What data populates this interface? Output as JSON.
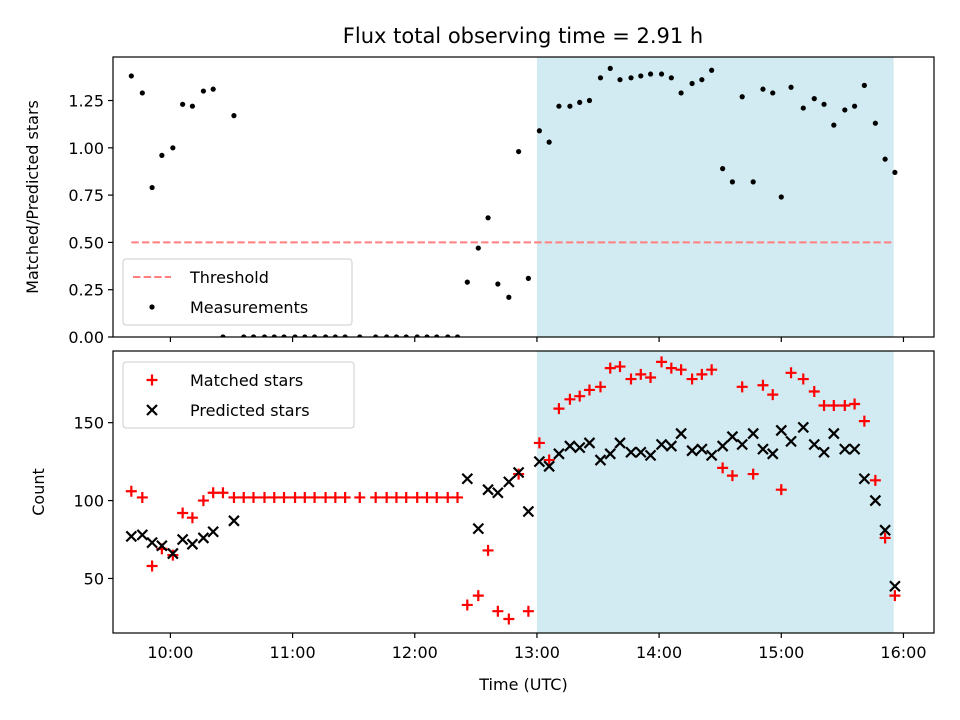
{
  "title": "Flux total observing time = 2.91 h",
  "colors": {
    "threshold": "#ff7f7f",
    "measurement": "#000000",
    "matched": "#ff0000",
    "predicted": "#000000",
    "observing_window": "#add8e6"
  },
  "chart_data": [
    {
      "type": "scatter",
      "ylabel": "Matched/Predicted stars",
      "ylim": [
        0,
        1.48
      ],
      "xlim": [
        9.53,
        16.25
      ],
      "yticks": [
        {
          "value": 0.0,
          "label": "0.00"
        },
        {
          "value": 0.25,
          "label": "0.25"
        },
        {
          "value": 0.5,
          "label": "0.50"
        },
        {
          "value": 0.75,
          "label": "0.75"
        },
        {
          "value": 1.0,
          "label": "1.00"
        },
        {
          "value": 1.25,
          "label": "1.25"
        }
      ],
      "shaded_span": [
        13.0,
        15.92
      ],
      "threshold": {
        "name": "Threshold",
        "value": 0.5,
        "x": [
          9.68,
          15.92
        ],
        "style": "dashed"
      },
      "legend": {
        "placement": "lower-left",
        "entries": [
          "Threshold",
          "Measurements"
        ]
      },
      "series": [
        {
          "name": "Measurements",
          "marker": "dot",
          "points": [
            [
              9.68,
              1.38
            ],
            [
              9.77,
              1.29
            ],
            [
              9.85,
              0.79
            ],
            [
              9.93,
              0.96
            ],
            [
              10.02,
              1.0
            ],
            [
              10.1,
              1.23
            ],
            [
              10.18,
              1.22
            ],
            [
              10.27,
              1.3
            ],
            [
              10.35,
              1.31
            ],
            [
              10.52,
              1.17
            ],
            [
              10.43,
              0.0
            ],
            [
              10.6,
              0.0
            ],
            [
              10.68,
              0.0
            ],
            [
              10.77,
              0.0
            ],
            [
              10.85,
              0.0
            ],
            [
              10.93,
              0.0
            ],
            [
              11.02,
              0.0
            ],
            [
              11.1,
              0.0
            ],
            [
              11.18,
              0.0
            ],
            [
              11.27,
              0.0
            ],
            [
              11.35,
              0.0
            ],
            [
              11.43,
              0.0
            ],
            [
              11.55,
              0.0
            ],
            [
              11.68,
              0.0
            ],
            [
              11.77,
              0.0
            ],
            [
              11.85,
              0.0
            ],
            [
              11.93,
              0.0
            ],
            [
              12.02,
              0.0
            ],
            [
              12.1,
              0.0
            ],
            [
              12.18,
              0.0
            ],
            [
              12.27,
              0.0
            ],
            [
              12.35,
              0.0
            ],
            [
              12.43,
              0.29
            ],
            [
              12.52,
              0.47
            ],
            [
              12.6,
              0.63
            ],
            [
              12.68,
              0.28
            ],
            [
              12.77,
              0.21
            ],
            [
              12.85,
              0.98
            ],
            [
              12.93,
              0.31
            ],
            [
              13.02,
              1.09
            ],
            [
              13.1,
              1.03
            ],
            [
              13.18,
              1.22
            ],
            [
              13.27,
              1.22
            ],
            [
              13.35,
              1.24
            ],
            [
              13.43,
              1.25
            ],
            [
              13.52,
              1.37
            ],
            [
              13.6,
              1.42
            ],
            [
              13.68,
              1.36
            ],
            [
              13.77,
              1.37
            ],
            [
              13.85,
              1.38
            ],
            [
              13.93,
              1.39
            ],
            [
              14.02,
              1.39
            ],
            [
              14.1,
              1.37
            ],
            [
              14.18,
              1.29
            ],
            [
              14.27,
              1.34
            ],
            [
              14.35,
              1.36
            ],
            [
              14.43,
              1.41
            ],
            [
              14.52,
              0.89
            ],
            [
              14.6,
              0.82
            ],
            [
              14.68,
              1.27
            ],
            [
              14.77,
              0.82
            ],
            [
              14.85,
              1.31
            ],
            [
              14.93,
              1.29
            ],
            [
              15.0,
              0.74
            ],
            [
              15.08,
              1.32
            ],
            [
              15.18,
              1.21
            ],
            [
              15.27,
              1.26
            ],
            [
              15.35,
              1.23
            ],
            [
              15.43,
              1.12
            ],
            [
              15.52,
              1.2
            ],
            [
              15.6,
              1.22
            ],
            [
              15.68,
              1.33
            ],
            [
              15.77,
              1.13
            ],
            [
              15.85,
              0.94
            ],
            [
              15.93,
              0.87
            ]
          ]
        }
      ]
    },
    {
      "type": "scatter",
      "ylabel": "Count",
      "xlabel": "Time (UTC)",
      "ylim": [
        15,
        196
      ],
      "xlim": [
        9.53,
        16.25
      ],
      "yticks": [
        {
          "value": 50,
          "label": "50"
        },
        {
          "value": 100,
          "label": "100"
        },
        {
          "value": 150,
          "label": "150"
        }
      ],
      "xticks": [
        {
          "value": 10,
          "label": "10:00"
        },
        {
          "value": 11,
          "label": "11:00"
        },
        {
          "value": 12,
          "label": "12:00"
        },
        {
          "value": 13,
          "label": "13:00"
        },
        {
          "value": 14,
          "label": "14:00"
        },
        {
          "value": 15,
          "label": "15:00"
        },
        {
          "value": 16,
          "label": "16:00"
        }
      ],
      "shaded_span": [
        13.0,
        15.92
      ],
      "legend": {
        "placement": "upper-left",
        "entries": [
          "Matched stars",
          "Predicted stars"
        ]
      },
      "series": [
        {
          "name": "Matched stars",
          "marker": "plus",
          "points": [
            [
              9.68,
              106
            ],
            [
              9.77,
              102
            ],
            [
              9.85,
              58
            ],
            [
              9.93,
              69
            ],
            [
              10.02,
              65
            ],
            [
              10.1,
              92
            ],
            [
              10.18,
              89
            ],
            [
              10.27,
              100
            ],
            [
              10.35,
              105
            ],
            [
              10.43,
              105
            ],
            [
              10.52,
              102
            ],
            [
              10.6,
              102
            ],
            [
              10.68,
              102
            ],
            [
              10.77,
              102
            ],
            [
              10.85,
              102
            ],
            [
              10.93,
              102
            ],
            [
              11.02,
              102
            ],
            [
              11.1,
              102
            ],
            [
              11.18,
              102
            ],
            [
              11.27,
              102
            ],
            [
              11.35,
              102
            ],
            [
              11.43,
              102
            ],
            [
              11.55,
              102
            ],
            [
              11.68,
              102
            ],
            [
              11.77,
              102
            ],
            [
              11.85,
              102
            ],
            [
              11.93,
              102
            ],
            [
              12.02,
              102
            ],
            [
              12.1,
              102
            ],
            [
              12.18,
              102
            ],
            [
              12.27,
              102
            ],
            [
              12.35,
              102
            ],
            [
              12.43,
              33
            ],
            [
              12.52,
              39
            ],
            [
              12.6,
              68
            ],
            [
              12.68,
              29
            ],
            [
              12.77,
              24
            ],
            [
              12.85,
              117
            ],
            [
              12.93,
              29
            ],
            [
              13.02,
              137
            ],
            [
              13.1,
              126
            ],
            [
              13.18,
              159
            ],
            [
              13.27,
              165
            ],
            [
              13.35,
              167
            ],
            [
              13.43,
              171
            ],
            [
              13.52,
              173
            ],
            [
              13.6,
              185
            ],
            [
              13.68,
              186
            ],
            [
              13.77,
              178
            ],
            [
              13.85,
              181
            ],
            [
              13.93,
              179
            ],
            [
              14.02,
              189
            ],
            [
              14.1,
              185
            ],
            [
              14.18,
              184
            ],
            [
              14.27,
              178
            ],
            [
              14.35,
              181
            ],
            [
              14.43,
              184
            ],
            [
              14.52,
              121
            ],
            [
              14.6,
              116
            ],
            [
              14.68,
              173
            ],
            [
              14.77,
              117
            ],
            [
              14.85,
              174
            ],
            [
              14.93,
              168
            ],
            [
              15.0,
              107
            ],
            [
              15.08,
              182
            ],
            [
              15.18,
              178
            ],
            [
              15.27,
              170
            ],
            [
              15.35,
              161
            ],
            [
              15.43,
              161
            ],
            [
              15.52,
              161
            ],
            [
              15.6,
              162
            ],
            [
              15.68,
              151
            ],
            [
              15.77,
              113
            ],
            [
              15.85,
              76
            ],
            [
              15.93,
              39
            ]
          ]
        },
        {
          "name": "Predicted stars",
          "marker": "x",
          "points": [
            [
              9.68,
              77
            ],
            [
              9.77,
              78
            ],
            [
              9.85,
              73
            ],
            [
              9.93,
              71
            ],
            [
              10.02,
              66
            ],
            [
              10.1,
              75
            ],
            [
              10.18,
              72
            ],
            [
              10.27,
              76
            ],
            [
              10.35,
              80
            ],
            [
              10.52,
              87
            ],
            [
              12.43,
              114
            ],
            [
              12.52,
              82
            ],
            [
              12.6,
              107
            ],
            [
              12.68,
              105
            ],
            [
              12.77,
              112
            ],
            [
              12.85,
              118
            ],
            [
              12.93,
              93
            ],
            [
              13.02,
              125
            ],
            [
              13.1,
              122
            ],
            [
              13.18,
              130
            ],
            [
              13.27,
              135
            ],
            [
              13.35,
              134
            ],
            [
              13.43,
              137
            ],
            [
              13.52,
              126
            ],
            [
              13.6,
              130
            ],
            [
              13.68,
              137
            ],
            [
              13.77,
              131
            ],
            [
              13.85,
              131
            ],
            [
              13.93,
              129
            ],
            [
              14.02,
              136
            ],
            [
              14.1,
              135
            ],
            [
              14.18,
              143
            ],
            [
              14.27,
              132
            ],
            [
              14.35,
              133
            ],
            [
              14.43,
              129
            ],
            [
              14.52,
              135
            ],
            [
              14.6,
              141
            ],
            [
              14.68,
              136
            ],
            [
              14.77,
              143
            ],
            [
              14.85,
              133
            ],
            [
              14.93,
              130
            ],
            [
              15.0,
              145
            ],
            [
              15.08,
              138
            ],
            [
              15.18,
              147
            ],
            [
              15.27,
              136
            ],
            [
              15.35,
              131
            ],
            [
              15.43,
              143
            ],
            [
              15.52,
              133
            ],
            [
              15.6,
              133
            ],
            [
              15.68,
              114
            ],
            [
              15.77,
              100
            ],
            [
              15.85,
              81
            ],
            [
              15.93,
              45
            ]
          ]
        }
      ]
    }
  ]
}
